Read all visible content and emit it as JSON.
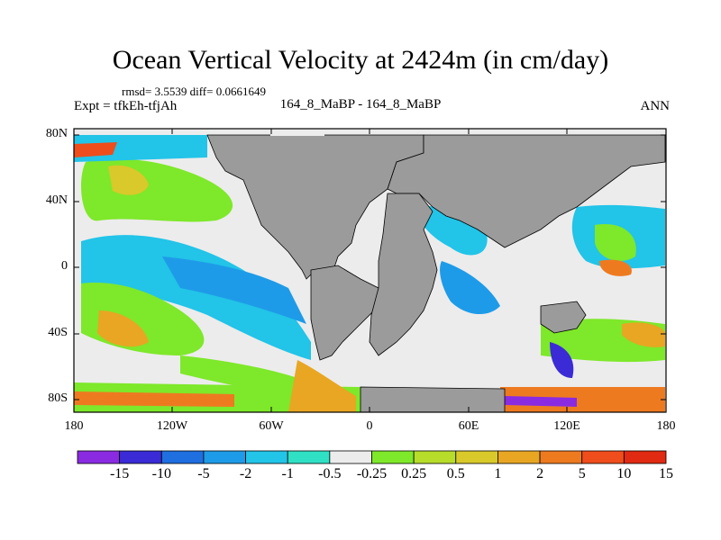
{
  "header": {
    "title": "Ocean Vertical Velocity at 2424m (in cm/day)",
    "stats": "rmsd= 3.5539 diff= 0.0661649",
    "expt": "Expt = tfkEh-tfjAh",
    "subtitle": "164_8_MaBP - 164_8_MaBP",
    "season": "ANN"
  },
  "axes": {
    "lat_labels": [
      "80N",
      "40N",
      "0",
      "40S",
      "80S"
    ],
    "lon_labels": [
      "180",
      "120W",
      "60W",
      "0",
      "60E",
      "120E",
      "180"
    ]
  },
  "colorbar": {
    "colors": [
      "#8a2be2",
      "#3a2bd6",
      "#1f6fe0",
      "#1e9be8",
      "#22c4e8",
      "#2fe0c4",
      "#ececec",
      "#7ee82a",
      "#b7dd2a",
      "#d9c92a",
      "#e8a623",
      "#ee7a20",
      "#ef4d1b",
      "#e02a12"
    ],
    "labels": [
      "-15",
      "-10",
      "-5",
      "-2",
      "-1",
      "-0.5",
      "-0.25",
      "0.25",
      "0.5",
      "1",
      "2",
      "5",
      "10",
      "15"
    ]
  },
  "map": {
    "land_color": "#9b9b9b",
    "ocean_background": "#ececec"
  }
}
